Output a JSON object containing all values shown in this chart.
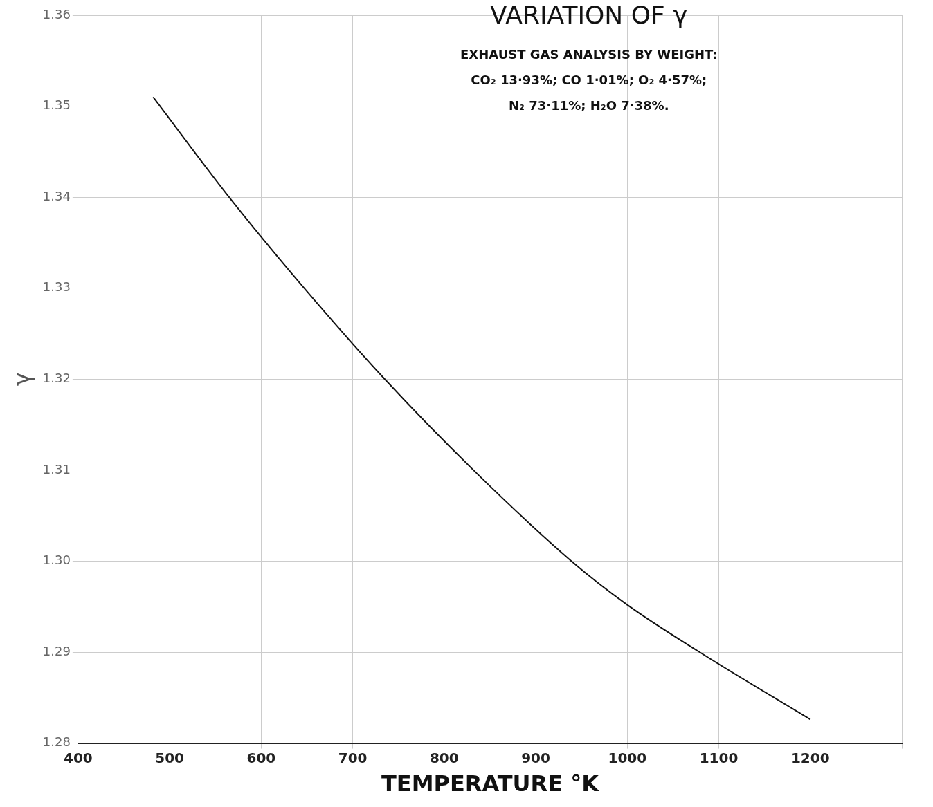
{
  "chart_data": {
    "type": "line",
    "title": "VARIATION OF γ",
    "xlabel": "TEMPERATURE °K",
    "ylabel": "γ",
    "annotations": [
      "EXHAUST GAS ANALYSIS BY WEIGHT:",
      "CO₂ 13·93%; CO 1·01%; O₂ 4·57%;",
      "N₂ 73·11%; H₂O 7·38%."
    ],
    "x": [
      482,
      565,
      647,
      735,
      832,
      939,
      1000,
      1079,
      1200
    ],
    "series": [
      {
        "color": "#111111",
        "values": [
          1.351,
          1.34,
          1.33,
          1.32,
          1.31,
          1.3,
          1.2952,
          1.29,
          1.2826
        ]
      }
    ],
    "xlim": [
      400,
      1300
    ],
    "xticks": [
      400,
      500,
      600,
      700,
      800,
      900,
      1000,
      1100,
      1200,
      {
        "value": 1300,
        "label": null
      }
    ],
    "ylim": [
      1.28,
      1.36
    ],
    "yticks": [
      {
        "value": 1.28,
        "label": "1.28"
      },
      {
        "value": 1.29,
        "label": "1.29"
      },
      {
        "value": 1.3,
        "label": "1.30"
      },
      {
        "value": 1.31,
        "label": "1.31"
      },
      {
        "value": 1.32,
        "label": "1.32"
      },
      {
        "value": 1.33,
        "label": "1.33"
      },
      {
        "value": 1.34,
        "label": "1.34"
      },
      {
        "value": 1.35,
        "label": "1.35"
      },
      {
        "value": 1.36,
        "label": "1.36"
      }
    ],
    "grid": true,
    "legend": false,
    "marker": "none",
    "line_style": "solid"
  }
}
